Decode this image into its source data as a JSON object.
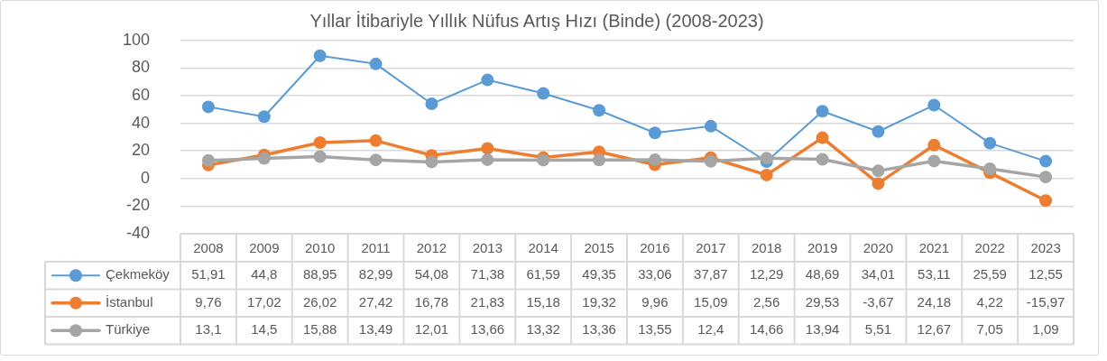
{
  "chart_data": {
    "type": "line",
    "title": "Yıllar İtibariyle Yıllık Nüfus Artış Hızı (Binde) (2008-2023)",
    "categories": [
      "2008",
      "2009",
      "2010",
      "2011",
      "2012",
      "2013",
      "2014",
      "2015",
      "2016",
      "2017",
      "2018",
      "2019",
      "2020",
      "2021",
      "2022",
      "2023"
    ],
    "series": [
      {
        "name": "Çekmeköy",
        "color": "#5b9bd5",
        "values": [
          51.91,
          44.8,
          88.95,
          82.99,
          54.08,
          71.38,
          61.59,
          49.35,
          33.06,
          37.87,
          12.29,
          48.69,
          34.01,
          53.11,
          25.59,
          12.55
        ],
        "value_labels": [
          "51,91",
          "44,8",
          "88,95",
          "82,99",
          "54,08",
          "71,38",
          "61,59",
          "49,35",
          "33,06",
          "37,87",
          "12,29",
          "48,69",
          "34,01",
          "53,11",
          "25,59",
          "12,55"
        ]
      },
      {
        "name": "İstanbul",
        "color": "#ed7d31",
        "values": [
          9.76,
          17.02,
          26.02,
          27.42,
          16.78,
          21.83,
          15.18,
          19.32,
          9.96,
          15.09,
          2.56,
          29.53,
          -3.67,
          24.18,
          4.22,
          -15.97
        ],
        "value_labels": [
          "9,76",
          "17,02",
          "26,02",
          "27,42",
          "16,78",
          "21,83",
          "15,18",
          "19,32",
          "9,96",
          "15,09",
          "2,56",
          "29,53",
          "-3,67",
          "24,18",
          "4,22",
          "-15,97"
        ]
      },
      {
        "name": "Türkiye",
        "color": "#a5a5a5",
        "values": [
          13.1,
          14.5,
          15.88,
          13.49,
          12.01,
          13.66,
          13.32,
          13.36,
          13.55,
          12.4,
          14.66,
          13.94,
          5.51,
          12.67,
          7.05,
          1.09
        ],
        "value_labels": [
          "13,1",
          "14,5",
          "15,88",
          "13,49",
          "12,01",
          "13,66",
          "13,32",
          "13,36",
          "13,55",
          "12,4",
          "14,66",
          "13,94",
          "5,51",
          "12,67",
          "7,05",
          "1,09"
        ]
      }
    ],
    "ylim": [
      -40,
      100
    ],
    "yticks": [
      -40,
      -20,
      0,
      20,
      40,
      60,
      80,
      100
    ],
    "grid": "y",
    "legend": "bottom",
    "marker": "circle",
    "line_style": "solid"
  }
}
